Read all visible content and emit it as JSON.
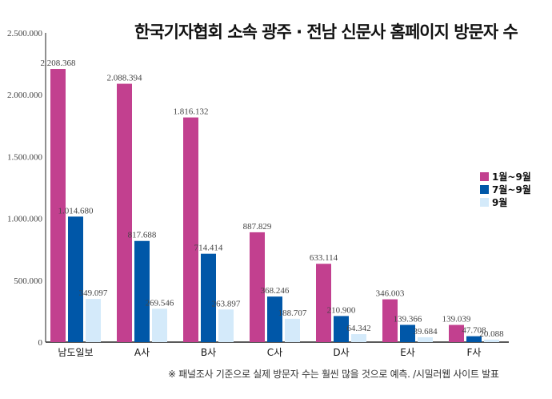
{
  "chart_data": {
    "type": "bar",
    "title": "한국기자협회 소속 광주 · 전남 신문사 홈페이지 방문자 수",
    "categories": [
      "남도일보",
      "A사",
      "B사",
      "C사",
      "D사",
      "E사",
      "F사"
    ],
    "series": [
      {
        "name": "1월~9월",
        "color": "#c2408f",
        "values": [
          2208368,
          2088394,
          1816132,
          887829,
          633114,
          346003,
          139039
        ],
        "labels": [
          "2.208.368",
          "2.088.394",
          "1.816.132",
          "887.829",
          "633.114",
          "346.003",
          "139.039"
        ]
      },
      {
        "name": "7월~9월",
        "color": "#0057a8",
        "values": [
          1014680,
          817688,
          714414,
          368246,
          210900,
          139366,
          47708
        ],
        "labels": [
          "1.014.680",
          "817.688",
          "714.414",
          "368.246",
          "210.900",
          "139.366",
          "47.708"
        ]
      },
      {
        "name": "9월",
        "color": "#d4eafa",
        "values": [
          349097,
          269546,
          263897,
          188707,
          64342,
          39684,
          20088
        ],
        "labels": [
          "349.097",
          "269.546",
          "263.897",
          "188.707",
          "64.342",
          "39.684",
          "20.088"
        ]
      }
    ],
    "ylim": [
      0,
      2500000
    ],
    "yticks": [
      0,
      500000,
      1000000,
      1500000,
      2000000,
      2500000
    ],
    "ytick_labels": [
      "0",
      "500.000",
      "1.000.000",
      "1.500.000",
      "2.000.000",
      "2.500.000"
    ],
    "legend": "right",
    "grid": false,
    "note": "※ 패널조사 기준으로 실제 방문자 수는 훨씬 많을 것으로 예측. /시밀러웹 사이트 발표"
  }
}
